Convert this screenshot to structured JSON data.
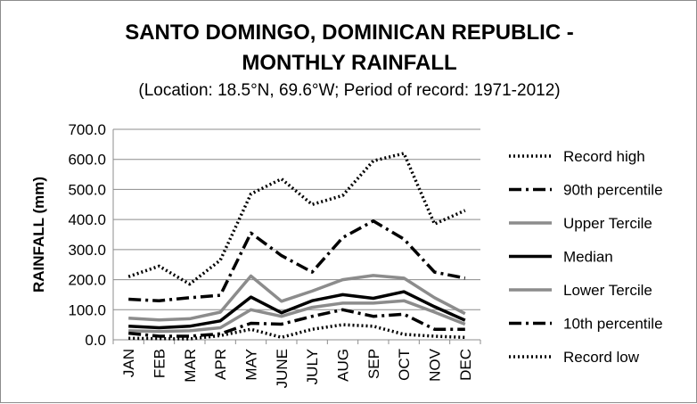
{
  "chart_data": {
    "type": "line",
    "title_line1": "SANTO DOMINGO, DOMINICAN REPUBLIC -",
    "title_line2": "MONTHLY RAINFALL",
    "subtitle": "(Location: 18.5°N, 69.6°W; Period of record: 1971-2012)",
    "xlabel": "",
    "ylabel": "RAINFALL (mm)",
    "ylim": [
      0,
      700
    ],
    "yticks": [
      "0.0",
      "100.0",
      "200.0",
      "300.0",
      "400.0",
      "500.0",
      "600.0",
      "700.0"
    ],
    "categories": [
      "JAN",
      "FEB",
      "MAR",
      "APR",
      "MAY",
      "JUNE",
      "JULY",
      "AUG",
      "SEP",
      "OCT",
      "NOV",
      "DEC"
    ],
    "legend_position": "right",
    "grid": "horizontal",
    "series": [
      {
        "name": "Record high",
        "color": "#000000",
        "style": "dotted",
        "values": [
          210,
          245,
          185,
          265,
          485,
          535,
          450,
          480,
          595,
          620,
          385,
          430
        ]
      },
      {
        "name": "90th percentile",
        "color": "#000000",
        "style": "dashdot",
        "values": [
          135,
          130,
          140,
          148,
          355,
          280,
          225,
          340,
          395,
          335,
          225,
          205
        ]
      },
      {
        "name": "Upper Tercile",
        "color": "#8c8c8c",
        "style": "solid",
        "values": [
          72,
          66,
          70,
          92,
          212,
          128,
          162,
          200,
          214,
          205,
          140,
          87
        ]
      },
      {
        "name": "Median",
        "color": "#000000",
        "style": "solid",
        "values": [
          45,
          40,
          45,
          63,
          142,
          90,
          130,
          150,
          138,
          160,
          110,
          65
        ]
      },
      {
        "name": "Lower Tercile",
        "color": "#8c8c8c",
        "style": "solid",
        "values": [
          30,
          28,
          30,
          40,
          100,
          78,
          108,
          122,
          122,
          130,
          92,
          52
        ]
      },
      {
        "name": "10th percentile",
        "color": "#000000",
        "style": "dashdot",
        "values": [
          22,
          12,
          12,
          20,
          55,
          52,
          78,
          100,
          78,
          85,
          35,
          35
        ]
      },
      {
        "name": "Record low",
        "color": "#000000",
        "style": "dotted",
        "values": [
          5,
          4,
          3,
          14,
          35,
          8,
          35,
          50,
          45,
          18,
          12,
          8
        ]
      }
    ]
  }
}
